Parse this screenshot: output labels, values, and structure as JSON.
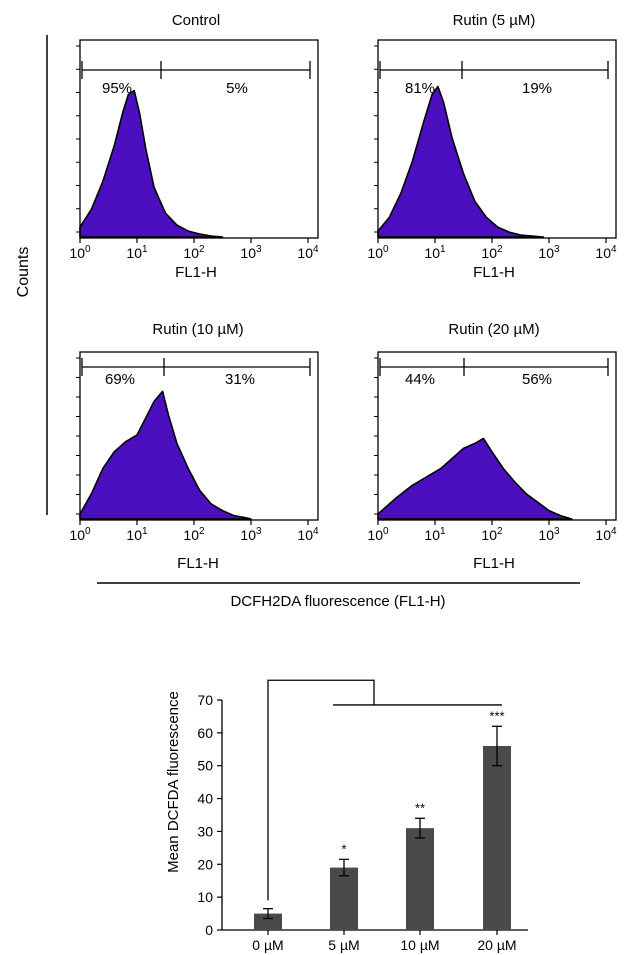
{
  "shared": {
    "y_axis_label": "Counts",
    "x_group_label": "DCFH2DA fluorescence (FL1-H)",
    "fill_color": "#4b0fbf",
    "edge_color": "#000000"
  },
  "chart_data": [
    {
      "type": "area",
      "title": "Control",
      "xlabel": "FL1-H",
      "x_scale": "log",
      "x_ticks": [
        "10^0",
        "10^1",
        "10^2",
        "10^3",
        "10^4"
      ],
      "gate_left": "95%",
      "gate_right": "5%",
      "curve": {
        "log_x": [
          0,
          0.2,
          0.4,
          0.6,
          0.75,
          0.85,
          0.95,
          1.05,
          1.15,
          1.3,
          1.5,
          1.7,
          1.9,
          2.1,
          2.3,
          2.5
        ],
        "height": [
          0.05,
          0.14,
          0.28,
          0.46,
          0.63,
          0.72,
          0.74,
          0.62,
          0.45,
          0.25,
          0.12,
          0.06,
          0.03,
          0.015,
          0.005,
          0
        ]
      }
    },
    {
      "type": "area",
      "title": "Rutin (5 µM)",
      "xlabel": "FL1-H",
      "x_scale": "log",
      "x_ticks": [
        "10^0",
        "10^1",
        "10^2",
        "10^3",
        "10^4"
      ],
      "gate_left": "81%",
      "gate_right": "19%",
      "curve": {
        "log_x": [
          0,
          0.2,
          0.4,
          0.6,
          0.8,
          0.95,
          1.05,
          1.15,
          1.3,
          1.5,
          1.7,
          1.9,
          2.1,
          2.3,
          2.5,
          2.7,
          2.9
        ],
        "height": [
          0.03,
          0.1,
          0.22,
          0.38,
          0.58,
          0.72,
          0.76,
          0.68,
          0.5,
          0.32,
          0.18,
          0.1,
          0.05,
          0.025,
          0.01,
          0.005,
          0
        ]
      }
    },
    {
      "type": "area",
      "title": "Rutin (10 µM)",
      "xlabel": "FL1-H",
      "x_scale": "log",
      "x_ticks": [
        "10^0",
        "10^1",
        "10^2",
        "10^3",
        "10^4"
      ],
      "gate_left": "69%",
      "gate_right": "31%",
      "curve": {
        "log_x": [
          0,
          0.2,
          0.4,
          0.6,
          0.8,
          1.0,
          1.15,
          1.3,
          1.45,
          1.55,
          1.7,
          1.9,
          2.1,
          2.3,
          2.5,
          2.7,
          2.9,
          3.0
        ],
        "height": [
          0.03,
          0.15,
          0.3,
          0.4,
          0.46,
          0.5,
          0.6,
          0.7,
          0.76,
          0.62,
          0.45,
          0.3,
          0.17,
          0.09,
          0.05,
          0.02,
          0.008,
          0
        ]
      }
    },
    {
      "type": "area",
      "title": "Rutin (20 µM)",
      "xlabel": "FL1-H",
      "x_scale": "log",
      "x_ticks": [
        "10^0",
        "10^1",
        "10^2",
        "10^3",
        "10^4"
      ],
      "gate_left": "44%",
      "gate_right": "56%",
      "curve": {
        "log_x": [
          0,
          0.3,
          0.6,
          0.9,
          1.1,
          1.3,
          1.5,
          1.7,
          1.85,
          2.0,
          2.2,
          2.4,
          2.6,
          2.8,
          3.0,
          3.2,
          3.4
        ],
        "height": [
          0.03,
          0.12,
          0.2,
          0.26,
          0.3,
          0.36,
          0.42,
          0.45,
          0.48,
          0.4,
          0.3,
          0.22,
          0.15,
          0.1,
          0.05,
          0.02,
          0
        ]
      }
    },
    {
      "type": "bar",
      "ylabel": "Mean DCFDA fluorescence",
      "categories": [
        "0 µM",
        "5 µM",
        "10 µM",
        "20 µM"
      ],
      "values": [
        5,
        19,
        31,
        56
      ],
      "errors": [
        1.5,
        2.5,
        3,
        6
      ],
      "significance": [
        "",
        "*",
        "**",
        "***"
      ],
      "ylim": [
        0,
        70
      ],
      "yticks": [
        0,
        10,
        20,
        30,
        40,
        50,
        60,
        70
      ],
      "bar_color": "#4a4a4a"
    }
  ]
}
